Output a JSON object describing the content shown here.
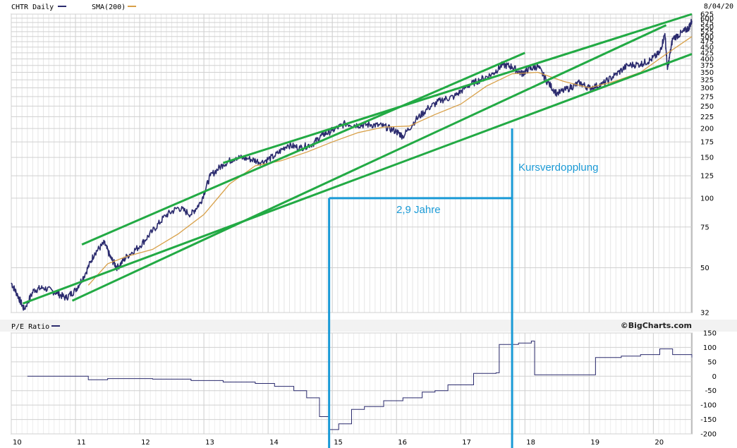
{
  "header": {
    "symbol_label": "CHTR Daily",
    "sma_label": "SMA(200)",
    "date": "8/04/20",
    "brand": "©BigCharts.com",
    "pe_label": "P/E Ratio"
  },
  "colors": {
    "price": "#2b2b6e",
    "sma": "#d8a048",
    "trend": "#22aa44",
    "annotation": "#1a9ad6",
    "pe": "#2b2b6e",
    "grid": "#d0d0d0"
  },
  "chart_data": [
    {
      "type": "line",
      "name": "price-panel",
      "y_scale": "log",
      "ylim": [
        32,
        625
      ],
      "xlim": [
        2010.0,
        2020.6
      ],
      "x_ticks": [
        "10",
        "11",
        "12",
        "13",
        "14",
        "15",
        "16",
        "17",
        "18",
        "19",
        "20"
      ],
      "y_ticks": [
        32,
        50,
        75,
        100,
        125,
        150,
        175,
        200,
        225,
        250,
        275,
        300,
        325,
        350,
        375,
        400,
        425,
        450,
        475,
        500,
        525,
        550,
        575,
        600,
        625
      ],
      "grid": true,
      "series": [
        {
          "name": "CHTR Daily",
          "x": [
            2010.0,
            2010.1,
            2010.2,
            2010.35,
            2010.5,
            2010.7,
            2010.85,
            2011.0,
            2011.15,
            2011.3,
            2011.45,
            2011.55,
            2011.65,
            2011.8,
            2012.0,
            2012.2,
            2012.4,
            2012.6,
            2012.8,
            2012.95,
            2013.1,
            2013.3,
            2013.5,
            2013.7,
            2013.9,
            2014.1,
            2014.3,
            2014.5,
            2014.7,
            2014.85,
            2015.0,
            2015.2,
            2015.4,
            2015.6,
            2015.8,
            2016.0,
            2016.1,
            2016.3,
            2016.5,
            2016.7,
            2016.9,
            2017.1,
            2017.3,
            2017.5,
            2017.65,
            2017.8,
            2017.95,
            2018.05,
            2018.2,
            2018.35,
            2018.5,
            2018.7,
            2018.85,
            2019.0,
            2019.2,
            2019.4,
            2019.6,
            2019.8,
            2019.95,
            2020.1,
            2020.18,
            2020.22,
            2020.3,
            2020.45,
            2020.55,
            2020.6
          ],
          "values": [
            43,
            38,
            33,
            40,
            41,
            39,
            37,
            40,
            47,
            58,
            64,
            55,
            50,
            56,
            62,
            72,
            84,
            91,
            85,
            96,
            125,
            140,
            150,
            148,
            143,
            152,
            170,
            165,
            172,
            188,
            196,
            210,
            207,
            208,
            205,
            194,
            185,
            218,
            246,
            266,
            275,
            305,
            325,
            345,
            378,
            370,
            345,
            360,
            372,
            318,
            283,
            300,
            315,
            300,
            310,
            340,
            375,
            380,
            395,
            425,
            515,
            360,
            490,
            520,
            545,
            585
          ]
        },
        {
          "name": "SMA(200)",
          "x": [
            2011.2,
            2011.5,
            2011.8,
            2012.2,
            2012.6,
            2013.0,
            2013.4,
            2013.8,
            2014.2,
            2014.6,
            2015.0,
            2015.4,
            2015.8,
            2016.2,
            2016.6,
            2017.0,
            2017.4,
            2017.8,
            2018.2,
            2018.6,
            2019.0,
            2019.4,
            2019.8,
            2020.2,
            2020.6
          ],
          "values": [
            42,
            52,
            56,
            60,
            70,
            85,
            115,
            138,
            145,
            158,
            175,
            192,
            203,
            205,
            230,
            255,
            305,
            345,
            350,
            320,
            300,
            320,
            350,
            420,
            500
          ]
        }
      ]
    },
    {
      "type": "line",
      "name": "pe-panel",
      "ylim": [
        -200,
        150
      ],
      "xlim": [
        2010.0,
        2020.6
      ],
      "x_ticks": [
        "10",
        "11",
        "12",
        "13",
        "14",
        "15",
        "16",
        "17",
        "18",
        "19",
        "20"
      ],
      "y_ticks": [
        150,
        100,
        50,
        0,
        -50,
        -100,
        -150,
        -200
      ],
      "grid": true,
      "series": [
        {
          "name": "P/E Ratio",
          "x": [
            2010.25,
            2011.1,
            2011.2,
            2011.5,
            2012.2,
            2012.8,
            2013.3,
            2013.8,
            2014.1,
            2014.4,
            2014.6,
            2014.8,
            2014.95,
            2015.1,
            2015.3,
            2015.5,
            2015.8,
            2016.1,
            2016.4,
            2016.6,
            2016.8,
            2017.2,
            2017.55,
            2017.6,
            2017.9,
            2018.1,
            2018.15,
            2018.5,
            2019.05,
            2019.1,
            2019.5,
            2019.8,
            2020.1,
            2020.3,
            2020.6
          ],
          "values": [
            0,
            0,
            -12,
            -8,
            -10,
            -15,
            -20,
            -25,
            -35,
            -50,
            -75,
            -140,
            -185,
            -165,
            -115,
            -105,
            -85,
            -75,
            -55,
            -50,
            -30,
            10,
            12,
            110,
            115,
            122,
            5,
            5,
            5,
            65,
            70,
            75,
            95,
            75,
            65
          ]
        }
      ]
    }
  ],
  "annotations": {
    "price_doubling": "Kursverdopplung",
    "years": "2,9 Jahre"
  }
}
